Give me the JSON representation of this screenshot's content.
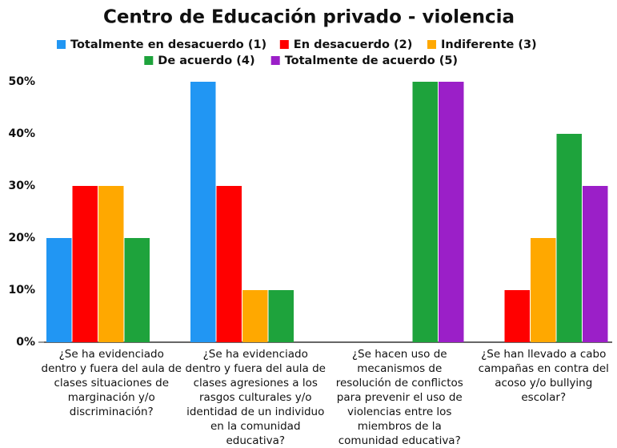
{
  "chart_data": {
    "type": "bar",
    "title": "Centro de Educación privado - violencia",
    "categories": [
      "¿Se ha evidenciado dentro y fuera del aula de clases situaciones de marginación y/o discriminación?",
      "¿Se ha evidenciado dentro y fuera del aula de clases agresiones a los rasgos culturales y/o identidad de un individuo en la comunidad educativa?",
      "¿Se hacen uso de mecanismos de resolución de conflictos para prevenir el uso de violencias entre los miembros de la comunidad educativa?",
      "¿Se han llevado a cabo campañas en contra del acoso y/o bullying escolar?"
    ],
    "series": [
      {
        "name": "Totalmente en desacuerdo (1)",
        "color": "#2196f3",
        "values": [
          20,
          50,
          0,
          0
        ]
      },
      {
        "name": "En desacuerdo (2)",
        "color": "#ff0000",
        "values": [
          30,
          30,
          0,
          10
        ]
      },
      {
        "name": "Indiferente (3)",
        "color": "#ffa800",
        "values": [
          30,
          10,
          0,
          20
        ]
      },
      {
        "name": "De acuerdo (4)",
        "color": "#1ea33c",
        "values": [
          20,
          10,
          50,
          40
        ]
      },
      {
        "name": "Totalmente de acuerdo (5)",
        "color": "#9b1fc8",
        "values": [
          0,
          0,
          50,
          30
        ]
      }
    ],
    "ylim": [
      0,
      50
    ],
    "yticks": [
      {
        "value": 0,
        "label": "0%"
      },
      {
        "value": 10,
        "label": "10%"
      },
      {
        "value": 20,
        "label": "20%"
      },
      {
        "value": 30,
        "label": "30%"
      },
      {
        "value": 40,
        "label": "40%"
      },
      {
        "value": 50,
        "label": "50%"
      }
    ],
    "legend": "top"
  }
}
